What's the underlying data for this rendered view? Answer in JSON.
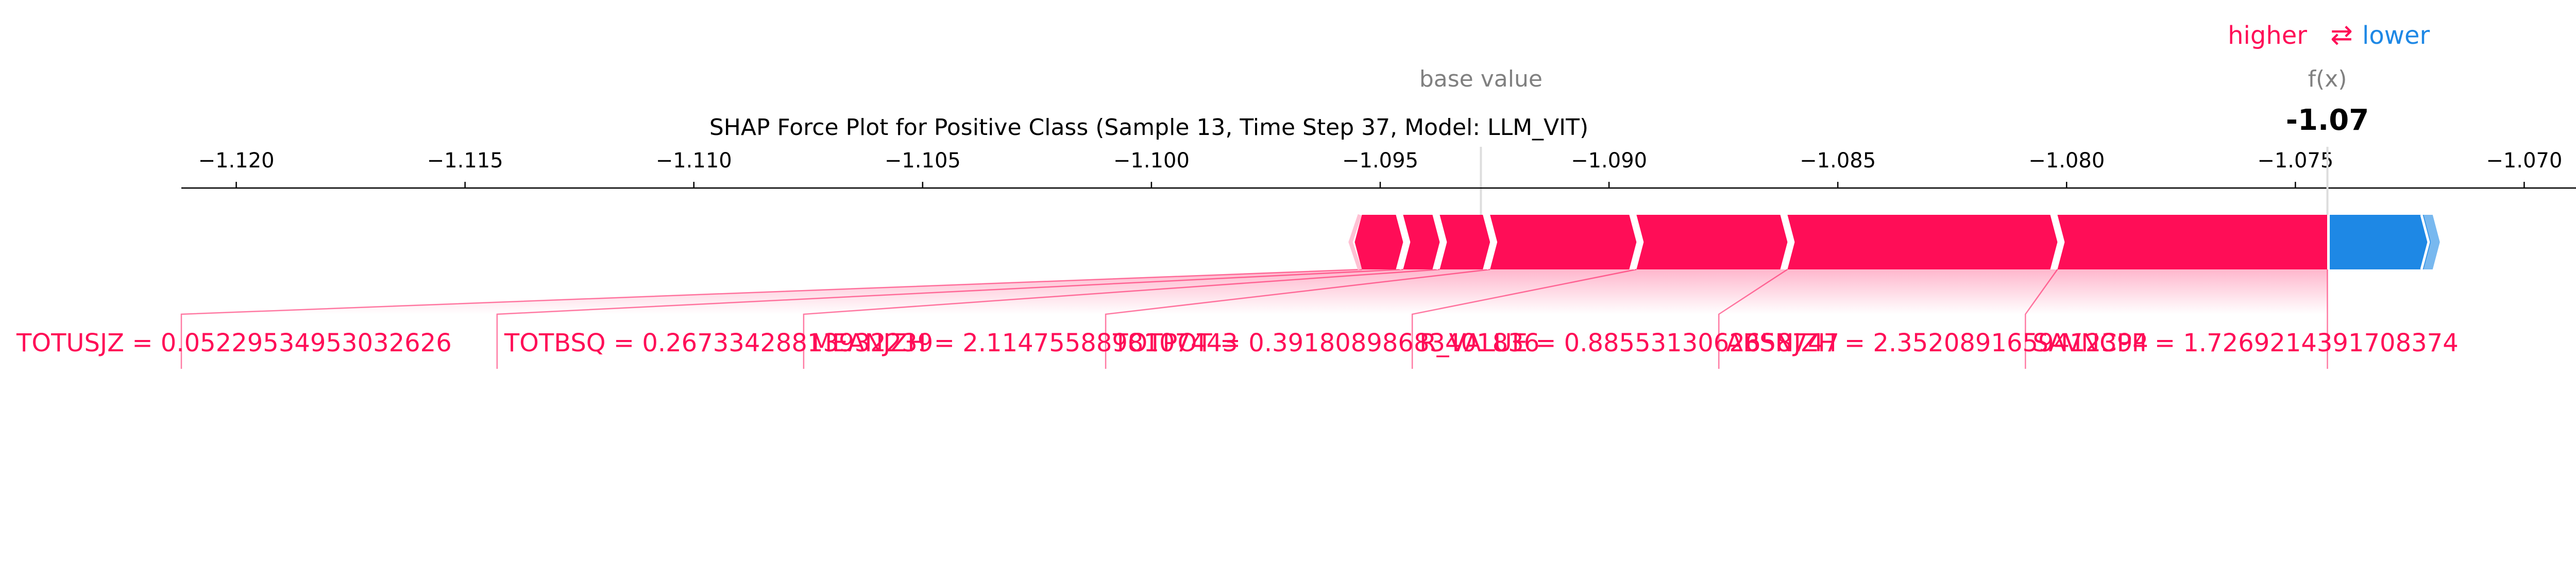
{
  "chart_data": {
    "type": "force",
    "title": "SHAP Force Plot for Positive Class (Sample 13, Time Step 37, Model: LLM_VIT)",
    "legend": {
      "higher": "higher",
      "arrows": "⇄",
      "lower": "lower"
    },
    "base_value_label": "base value",
    "fx_label": "f(x)",
    "base_value": -1.0928,
    "output_value": -1.07,
    "output_value_exact": -1.0743,
    "output_label": "-1.07",
    "xlim": [
      -1.1212,
      -1.0688
    ],
    "ticks": [
      -1.12,
      -1.115,
      -1.11,
      -1.105,
      -1.1,
      -1.095,
      -1.09,
      -1.085,
      -1.08,
      -1.075,
      -1.07
    ],
    "tick_labels": [
      "−1.120",
      "−1.115",
      "−1.110",
      "−1.105",
      "−1.100",
      "−1.095",
      "−1.090",
      "−1.085",
      "−1.080",
      "−1.075",
      "−1.070"
    ],
    "positive_segments": [
      {
        "start": -1.0954,
        "end": -1.0945
      },
      {
        "start": -1.0945,
        "end": -1.0937
      },
      {
        "start": -1.0937,
        "end": -1.0926
      },
      {
        "start": -1.0926,
        "end": -1.0894
      },
      {
        "start": -1.0894,
        "end": -1.0861
      },
      {
        "start": -1.0861,
        "end": -1.0802
      },
      {
        "start": -1.0802,
        "end": -1.0743
      }
    ],
    "negative_segments": [
      {
        "start": -1.0743,
        "end": -1.0722
      },
      {
        "start": -1.0722,
        "end": -1.072
      }
    ],
    "feature_labels": [
      {
        "text": "TOTUSJZ = 0.05229534953032626",
        "anchor": -1.1212
      },
      {
        "text": "TOTBSQ = 0.26733428813932239",
        "anchor": -1.1143
      },
      {
        "text": "MEANJZH = 2.1147558898107443",
        "anchor": -1.1076
      },
      {
        "text": "TOTPOT = 0.39180898683401836",
        "anchor": -1.101
      },
      {
        "text": "R_VALUE = 0.8855313062658747",
        "anchor": -1.0943
      },
      {
        "text": "ABSNJZH = 2.3520891659412394",
        "anchor": -1.0876
      },
      {
        "text": "SAVNCPP = 1.7269214391708374",
        "anchor": -1.0809
      }
    ],
    "colors": {
      "positive": "#ff0d57",
      "negative": "#1e88e5",
      "base_label": "#808080",
      "axis": "#000000"
    },
    "grid": false
  }
}
